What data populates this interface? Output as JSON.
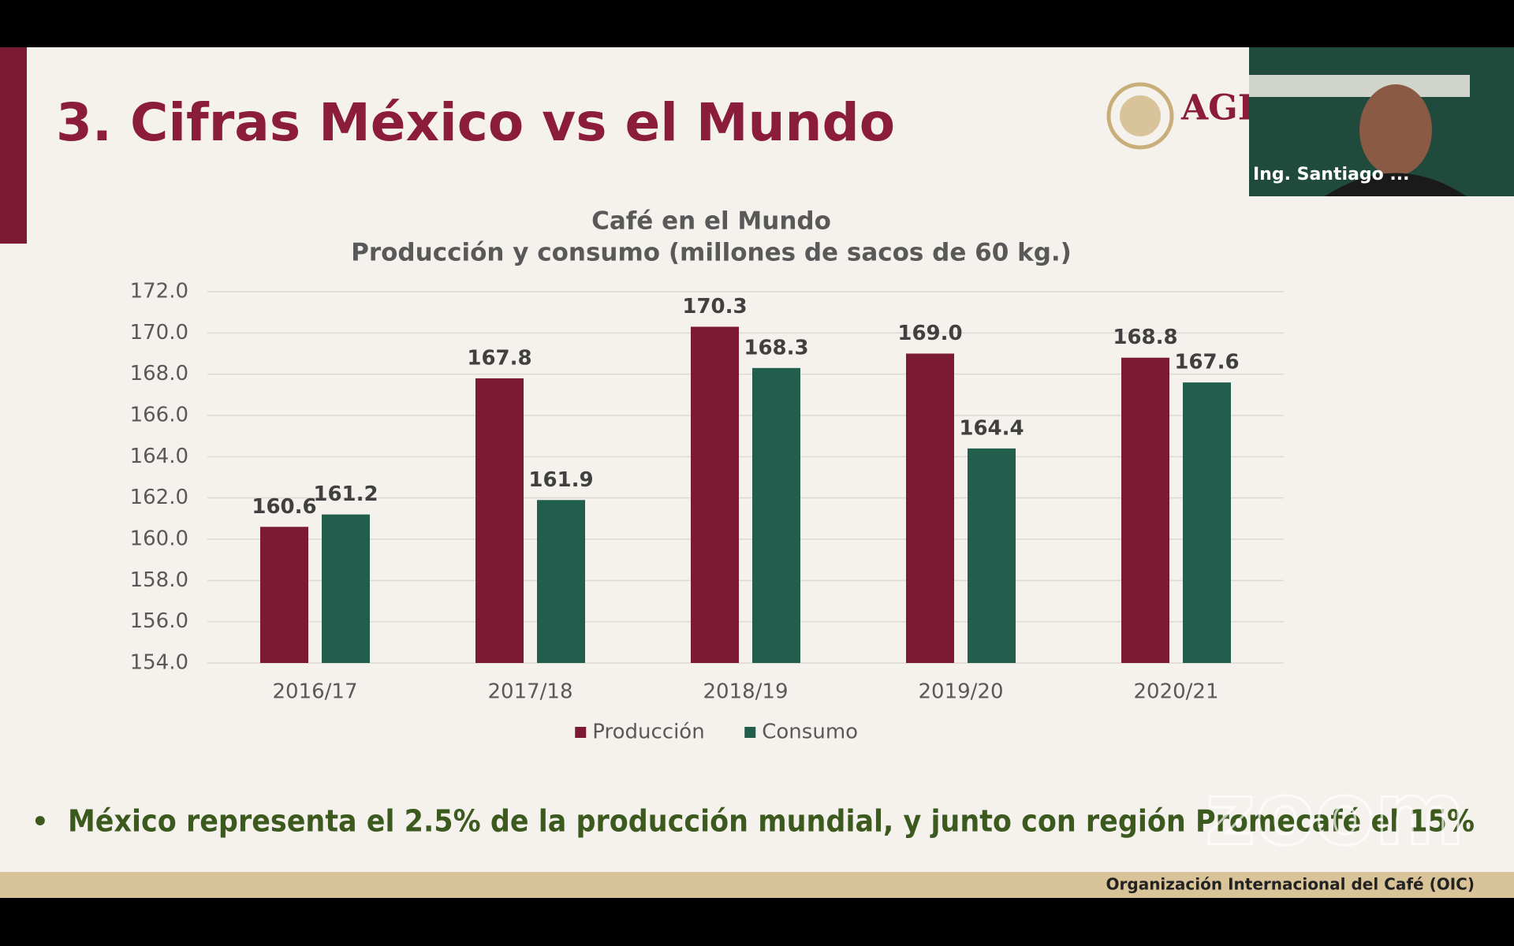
{
  "slide": {
    "title": "3. Cifras México vs el Mundo",
    "bullet": "México representa el 2.5% de la producción mundial, y junto con región Promecafé el 15%",
    "footer": "Organización Internacional del Café (OIC)",
    "logo_text": "AGI"
  },
  "video": {
    "participant": "Ing. Santiago ..."
  },
  "watermark": "zoom",
  "chart_data": {
    "type": "bar",
    "title": "Café en el Mundo",
    "subtitle": "Producción y consumo (millones de sacos de 60 kg.)",
    "categories": [
      "2016/17",
      "2017/18",
      "2018/19",
      "2019/20",
      "2020/21"
    ],
    "series": [
      {
        "name": "Producción",
        "color": "#7a1a35",
        "values": [
          160.6,
          167.8,
          170.3,
          169.0,
          168.8
        ],
        "value_labels": [
          "160.6",
          "167.8",
          "170.3",
          "169.0",
          "168.8"
        ]
      },
      {
        "name": "Consumo",
        "color": "#215e4b",
        "values": [
          161.2,
          161.9,
          168.3,
          164.4,
          167.6
        ],
        "value_labels": [
          "161.2",
          "161.9",
          "168.3",
          "164.4",
          "167.6"
        ]
      }
    ],
    "ylim": [
      154,
      172
    ],
    "yticks": [
      {
        "value": 154,
        "label": "154.0"
      },
      {
        "value": 156,
        "label": "156.0"
      },
      {
        "value": 158,
        "label": "158.0"
      },
      {
        "value": 160,
        "label": "160.0"
      },
      {
        "value": 162,
        "label": "162.0"
      },
      {
        "value": 164,
        "label": "164.0"
      },
      {
        "value": 166,
        "label": "166.0"
      },
      {
        "value": 168,
        "label": "168.0"
      },
      {
        "value": 170,
        "label": "170.0"
      },
      {
        "value": 172,
        "label": "172.0"
      }
    ],
    "grid": true,
    "legend": "bottom"
  }
}
